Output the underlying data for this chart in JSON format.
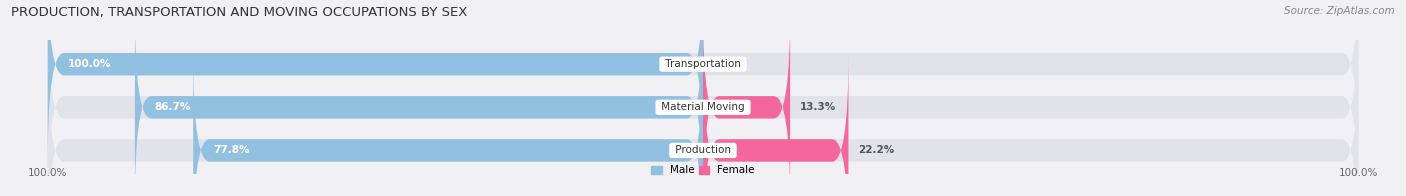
{
  "title": "PRODUCTION, TRANSPORTATION AND MOVING OCCUPATIONS BY SEX",
  "source": "Source: ZipAtlas.com",
  "categories": [
    "Transportation",
    "Material Moving",
    "Production"
  ],
  "male_values": [
    100.0,
    86.7,
    77.8
  ],
  "female_values": [
    0.0,
    13.3,
    22.2
  ],
  "male_color": "#92c0e0",
  "female_color": "#f4679d",
  "bar_bg_color": "#e2e2ea",
  "title_fontsize": 9.5,
  "source_fontsize": 7.5,
  "bar_label_fontsize": 7.5,
  "category_fontsize": 7.5,
  "axis_label_fontsize": 7.5,
  "background_color": "#f0f0f5",
  "bar_height": 0.52,
  "figsize": [
    14.06,
    1.96
  ],
  "dpi": 100,
  "xlim_left": -105,
  "xlim_right": 105
}
